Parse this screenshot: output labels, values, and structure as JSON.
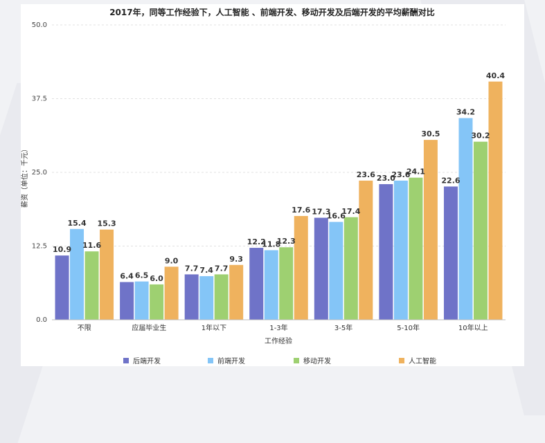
{
  "chart_data": {
    "type": "bar",
    "title": "2017年，同等工作经验下，人工智能 、前端开发、移动开发及后端开发的平均薪酬对比",
    "xlabel": "工作经验",
    "ylabel": "薪资（单位：千元）",
    "ylim": [
      0,
      50
    ],
    "yticks": [
      "0.0",
      "12.5",
      "25.0",
      "37.5",
      "50.0"
    ],
    "ytick_values": [
      0,
      12.5,
      25,
      37.5,
      50
    ],
    "grid": true,
    "legend_position": "bottom",
    "categories": [
      "不限",
      "应届毕业生",
      "1年以下",
      "1-3年",
      "3-5年",
      "5-10年",
      "10年以上"
    ],
    "series": [
      {
        "name": "后端开发",
        "color": "#6f73c8",
        "values": [
          10.9,
          6.4,
          7.7,
          12.2,
          17.3,
          23.0,
          22.6
        ],
        "labels": [
          "10.9",
          "6.4",
          "7.7",
          "12.2",
          "17.3",
          "23.0",
          "22.6"
        ]
      },
      {
        "name": "前端开发",
        "color": "#84c5f7",
        "values": [
          15.4,
          6.5,
          7.4,
          11.8,
          16.6,
          23.6,
          34.2
        ],
        "labels": [
          "15.4",
          "6.5",
          "7.4",
          "11.8",
          "16.6",
          "23.6",
          "34.2"
        ]
      },
      {
        "name": "移动开发",
        "color": "#9ed071",
        "values": [
          11.6,
          6.0,
          7.7,
          12.3,
          17.4,
          24.1,
          30.2
        ],
        "labels": [
          "11.6",
          "6.0",
          "7.7",
          "12.3",
          "17.4",
          "24.1",
          "30.2"
        ]
      },
      {
        "name": "人工智能",
        "color": "#efb25e",
        "values": [
          15.3,
          9.0,
          9.3,
          17.6,
          23.6,
          30.5,
          40.4
        ],
        "labels": [
          "15.3",
          "9.0",
          "9.3",
          "17.6",
          "23.6",
          "30.5",
          "40.4"
        ]
      }
    ]
  }
}
